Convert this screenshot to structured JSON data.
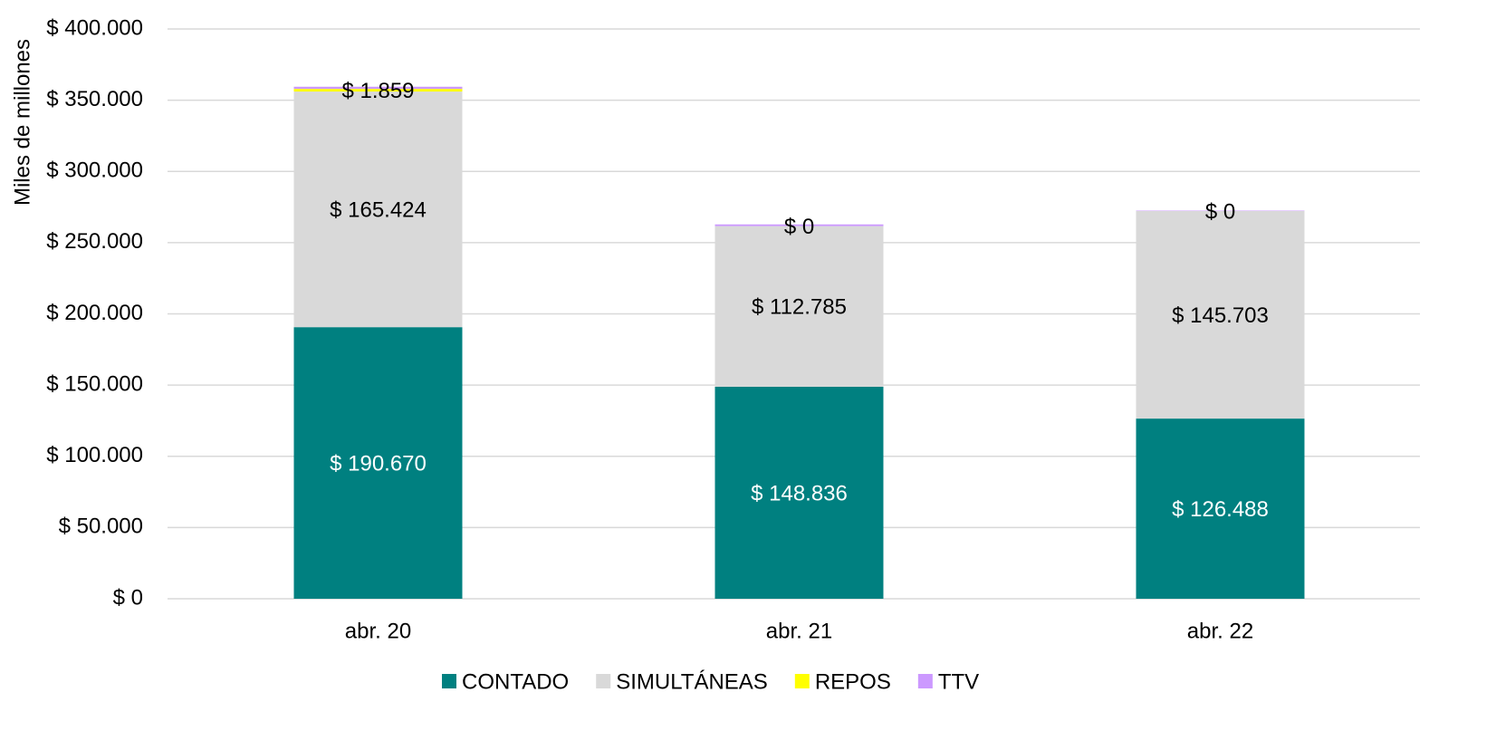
{
  "chart_data": {
    "type": "stacked_bar",
    "y_axis_label": "Miles de millones",
    "categories": [
      "abr. 20",
      "abr. 21",
      "abr. 22"
    ],
    "series": [
      {
        "name": "CONTADO",
        "color": "#008080",
        "values": [
          190670,
          148836,
          126488
        ],
        "value_labels": [
          "$ 190.670",
          "$ 148.836",
          "$ 126.488"
        ]
      },
      {
        "name": "SIMULTÁNEAS",
        "color": "#d9d9d9",
        "values": [
          165424,
          112785,
          145703
        ],
        "value_labels": [
          "$ 165.424",
          "$ 112.785",
          "$ 145.703"
        ]
      },
      {
        "name": "REPOS",
        "color": "#ffff00",
        "values": [
          1859,
          0,
          0
        ],
        "value_labels": [
          "$ 1.859",
          "$ 0",
          "$ 0"
        ]
      },
      {
        "name": "TTV",
        "color": "#cc99ff",
        "values": [
          1500,
          1200,
          300
        ]
      }
    ],
    "ylim": [
      0,
      400000
    ],
    "yticks": [
      {
        "value": 0,
        "label": "$ 0"
      },
      {
        "value": 50000,
        "label": "$ 50.000"
      },
      {
        "value": 100000,
        "label": "$ 100.000"
      },
      {
        "value": 150000,
        "label": "$ 150.000"
      },
      {
        "value": 200000,
        "label": "$ 200.000"
      },
      {
        "value": 250000,
        "label": "$ 250.000"
      },
      {
        "value": 300000,
        "label": "$ 300.000"
      },
      {
        "value": 350000,
        "label": "$ 350.000"
      },
      {
        "value": 400000,
        "label": "$ 400.000"
      }
    ],
    "grid": true,
    "legend": "bottom"
  }
}
